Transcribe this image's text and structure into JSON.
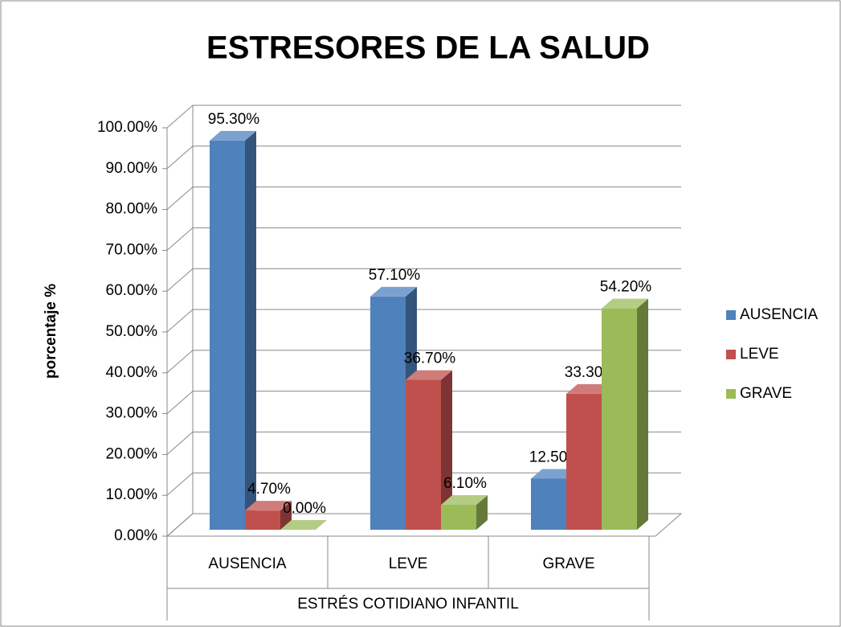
{
  "chart_data": {
    "type": "bar3d",
    "title": "ESTRESORES DE LA SALUD",
    "y_label": "porcentaje %",
    "x_label": "ESTRÉS COTIDIANO INFANTIL",
    "categories": [
      "AUSENCIA",
      "LEVE",
      "GRAVE"
    ],
    "series": [
      {
        "name": "AUSENCIA",
        "color": "#4f81bd",
        "values": [
          95.3,
          57.1,
          12.5
        ],
        "value_labels": [
          "95.30%",
          "57.10%",
          "12.50%"
        ]
      },
      {
        "name": "LEVE",
        "color": "#c0504d",
        "values": [
          4.7,
          36.7,
          33.3
        ],
        "value_labels": [
          "4.70%",
          "36.70%",
          "33.30%"
        ]
      },
      {
        "name": "GRAVE",
        "color": "#9bbb59",
        "values": [
          0,
          6.1,
          54.2
        ],
        "value_labels": [
          "0.00%",
          "6.10%",
          "54.20%"
        ]
      }
    ],
    "ylim": [
      0,
      100
    ],
    "yticks": [
      {
        "value": 0,
        "label": "0.00%"
      },
      {
        "value": 10,
        "label": "10.00%"
      },
      {
        "value": 20,
        "label": "20.00%"
      },
      {
        "value": 30,
        "label": "30.00%"
      },
      {
        "value": 40,
        "label": "40.00%"
      },
      {
        "value": 50,
        "label": "50.00%"
      },
      {
        "value": 60,
        "label": "60.00%"
      },
      {
        "value": 70,
        "label": "70.00%"
      },
      {
        "value": 80,
        "label": "80.00%"
      },
      {
        "value": 90,
        "label": "90.00%"
      },
      {
        "value": 100,
        "label": "100.00%"
      }
    ],
    "grid": true,
    "legend": "right"
  }
}
